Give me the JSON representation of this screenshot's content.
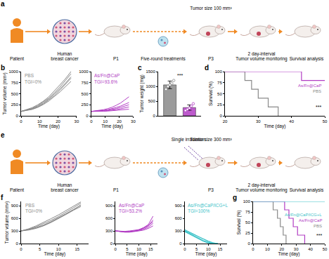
{
  "schematics": [
    {
      "label": "a",
      "steps": [
        [
          "Patient"
        ],
        [
          "Human",
          "breast cancer"
        ],
        [
          "P1"
        ],
        [
          "P3"
        ],
        [
          "2 day-interval",
          "Tumor volume monitoring"
        ],
        [
          "Survival analysis"
        ]
      ],
      "tumor_size": "Tumor size 100 mm³",
      "treatment": "Five-round treatments"
    },
    {
      "label": "e",
      "steps": [
        [
          "Patient"
        ],
        [
          "Human",
          "breast cancer"
        ],
        [
          "P1"
        ],
        [
          "P3"
        ],
        [
          "2 day-interval",
          "Tumor volume monitoring"
        ],
        [
          "Survival analysis"
        ]
      ],
      "tumor_size": "Tumor size 300 mm³",
      "treatment": "Single irradiation"
    }
  ],
  "chart_data": [
    {
      "label": "b",
      "type": "line",
      "x_label": "Time (day)",
      "y_label": "Tumor volume (mm³)",
      "xlim": [
        0,
        30
      ],
      "xticks": [
        0,
        10,
        20,
        30
      ],
      "ylim": [
        0,
        1000
      ],
      "yticks": [
        0,
        250,
        500,
        750,
        1000
      ],
      "panels": [
        {
          "name": "PBS",
          "color": "#8a8a8a",
          "annotation": "TGI=0%",
          "series": [
            {
              "x": [
                0,
                3,
                6,
                9,
                12,
                15,
                18,
                21,
                24,
                27
              ],
              "values": [
                100,
                130,
                170,
                230,
                310,
                400,
                520,
                650,
                800,
                950
              ]
            },
            {
              "x": [
                0,
                3,
                6,
                9,
                12,
                15,
                18,
                21,
                24,
                27
              ],
              "values": [
                100,
                125,
                160,
                215,
                290,
                380,
                490,
                610,
                740,
                880
              ]
            },
            {
              "x": [
                0,
                3,
                6,
                9,
                12,
                15,
                18,
                21,
                24,
                27
              ],
              "values": [
                100,
                120,
                150,
                200,
                270,
                360,
                460,
                580,
                720,
                850
              ]
            },
            {
              "x": [
                0,
                3,
                6,
                9,
                12,
                15,
                18,
                21,
                24,
                27
              ],
              "values": [
                100,
                140,
                185,
                250,
                330,
                430,
                560,
                700,
                840,
                1000
              ]
            },
            {
              "x": [
                0,
                3,
                6,
                9,
                12,
                15,
                18,
                21,
                24,
                27
              ],
              "values": [
                100,
                118,
                145,
                190,
                255,
                335,
                430,
                540,
                660,
                780
              ]
            }
          ]
        },
        {
          "name": "As/Fn@CaP",
          "color": "#b23ec4",
          "annotation": "TGI=93.6%",
          "series": [
            {
              "x": [
                0,
                3,
                6,
                9,
                12,
                15,
                18,
                21,
                24,
                27
              ],
              "values": [
                100,
                110,
                125,
                140,
                165,
                195,
                240,
                290,
                360,
                430
              ]
            },
            {
              "x": [
                0,
                3,
                6,
                9,
                12,
                15,
                18,
                21,
                24,
                27
              ],
              "values": [
                100,
                105,
                115,
                125,
                140,
                160,
                190,
                220,
                260,
                300
              ]
            },
            {
              "x": [
                0,
                3,
                6,
                9,
                12,
                15,
                18,
                21,
                24,
                27
              ],
              "values": [
                100,
                102,
                110,
                118,
                130,
                145,
                165,
                190,
                220,
                250
              ]
            },
            {
              "x": [
                0,
                3,
                6,
                9,
                12,
                15,
                18,
                21,
                24,
                27
              ],
              "values": [
                100,
                100,
                105,
                110,
                118,
                128,
                140,
                160,
                180,
                200
              ]
            },
            {
              "x": [
                0,
                3,
                6,
                9,
                12,
                15,
                18,
                21,
                24,
                27
              ],
              "values": [
                100,
                98,
                100,
                103,
                108,
                115,
                122,
                130,
                140,
                150
              ]
            }
          ]
        }
      ]
    },
    {
      "label": "c",
      "type": "bar",
      "y_label": "Tumor weight (mg)",
      "categories": [
        null,
        null
      ],
      "values": [
        1050,
        280
      ],
      "errors": [
        130,
        90
      ],
      "points": [
        [
          900,
          1000,
          1050,
          1100,
          1200
        ],
        [
          180,
          220,
          260,
          330,
          410
        ]
      ],
      "colors": [
        "#8a8a8a",
        "#b23ec4"
      ],
      "ylim": [
        0,
        1500
      ],
      "yticks": [
        0,
        500,
        1000,
        1500
      ],
      "tick_labels": "y",
      "annotation": "***"
    },
    {
      "label": "d",
      "type": "line",
      "line_style": "step",
      "x_label": "Time (day)",
      "y_label": "Survival (%)",
      "xlim": [
        20,
        50
      ],
      "xticks": [
        20,
        30,
        40,
        50
      ],
      "ylim": [
        0,
        100
      ],
      "yticks": [
        0,
        25,
        50,
        75,
        100
      ],
      "series": [
        {
          "name": "PBS",
          "color": "#8a8a8a",
          "x": [
            20,
            26,
            28,
            30,
            33,
            36
          ],
          "values": [
            100,
            80,
            60,
            40,
            20,
            0
          ]
        },
        {
          "name": "As/Fn@CaP",
          "color": "#b23ec4",
          "x": [
            20,
            43,
            50
          ],
          "values": [
            100,
            80,
            80
          ]
        }
      ],
      "annotation": "***"
    },
    {
      "label": "f",
      "type": "line",
      "x_label": "Time (day)",
      "y_label": "Tumor volume (mm³)",
      "xlim": [
        0,
        18
      ],
      "xticks": [
        0,
        5,
        10,
        15
      ],
      "ylim": [
        0,
        1000
      ],
      "yticks": [
        0,
        300,
        600,
        900
      ],
      "panels": [
        {
          "name": "PBS",
          "color": "#8a8a8a",
          "annotation": "TGI=0%",
          "series": [
            {
              "x": [
                0,
                2,
                4,
                6,
                8,
                10,
                12,
                14,
                16
              ],
              "values": [
                300,
                340,
                400,
                470,
                550,
                640,
                740,
                850,
                960
              ]
            },
            {
              "x": [
                0,
                2,
                4,
                6,
                8,
                10,
                12,
                14,
                16
              ],
              "values": [
                300,
                330,
                380,
                440,
                520,
                610,
                710,
                810,
                910
              ]
            },
            {
              "x": [
                0,
                2,
                4,
                6,
                8,
                10,
                12,
                14,
                16
              ],
              "values": [
                300,
                320,
                360,
                420,
                500,
                590,
                690,
                790,
                880
              ]
            },
            {
              "x": [
                0,
                2,
                4,
                6,
                8,
                10,
                12,
                14,
                16
              ],
              "values": [
                300,
                350,
                420,
                500,
                590,
                680,
                780,
                880,
                990
              ]
            },
            {
              "x": [
                0,
                2,
                4,
                6,
                8,
                10,
                12,
                14,
                16
              ],
              "values": [
                300,
                330,
                370,
                430,
                510,
                600,
                700,
                800,
                920
              ]
            }
          ]
        },
        {
          "name": "As/Fn@CaP",
          "color": "#b23ec4",
          "annotation": "TGI=53.2%",
          "series": [
            {
              "x": [
                0,
                2,
                4,
                6,
                8,
                10,
                12,
                14,
                16
              ],
              "values": [
                300,
                290,
                285,
                290,
                300,
                330,
                380,
                450,
                650
              ]
            },
            {
              "x": [
                0,
                2,
                4,
                6,
                8,
                10,
                12,
                14,
                16
              ],
              "values": [
                300,
                290,
                280,
                285,
                295,
                320,
                360,
                420,
                560
              ]
            },
            {
              "x": [
                0,
                2,
                4,
                6,
                8,
                10,
                12,
                14,
                16
              ],
              "values": [
                300,
                285,
                275,
                280,
                290,
                310,
                340,
                390,
                480
              ]
            },
            {
              "x": [
                0,
                2,
                4,
                6,
                8,
                10,
                12,
                14,
                16
              ],
              "values": [
                300,
                280,
                270,
                270,
                280,
                300,
                320,
                360,
                420
              ]
            },
            {
              "x": [
                0,
                2,
                4,
                6,
                8,
                10,
                12,
                14,
                16
              ],
              "values": [
                300,
                290,
                290,
                300,
                310,
                330,
                370,
                430,
                520
              ]
            }
          ]
        },
        {
          "name": "As/Fn@CaP/ICG+L",
          "color": "#3cc2c8",
          "annotation": "TGI=100%",
          "series": [
            {
              "x": [
                0,
                2,
                4,
                6,
                8,
                10,
                12,
                14
              ],
              "values": [
                330,
                280,
                220,
                160,
                100,
                50,
                10,
                0
              ]
            },
            {
              "x": [
                0,
                2,
                4,
                6,
                8,
                10,
                12,
                14
              ],
              "values": [
                300,
                240,
                180,
                120,
                70,
                30,
                0,
                0
              ]
            },
            {
              "x": [
                0,
                2,
                4,
                6,
                8,
                10,
                12,
                14
              ],
              "values": [
                280,
                220,
                160,
                100,
                50,
                10,
                0,
                0
              ]
            },
            {
              "x": [
                0,
                2,
                4,
                6,
                8,
                10,
                12,
                14
              ],
              "values": [
                310,
                260,
                200,
                150,
                100,
                60,
                20,
                0
              ]
            },
            {
              "x": [
                0,
                2,
                4,
                6,
                8,
                10,
                12,
                14
              ],
              "values": [
                290,
                230,
                170,
                110,
                60,
                20,
                0,
                0
              ]
            }
          ]
        }
      ]
    },
    {
      "label": "g",
      "type": "line",
      "line_style": "step",
      "x_label": "Time (day)",
      "y_label": "Survival (%)",
      "xlim": [
        0,
        50
      ],
      "xticks": [
        0,
        10,
        20,
        30,
        40,
        50
      ],
      "ylim": [
        0,
        100
      ],
      "yticks": [
        0,
        25,
        50,
        75,
        100
      ],
      "series": [
        {
          "name": "PBS",
          "color": "#8a8a8a",
          "x": [
            0,
            14,
            17,
            19,
            21,
            23
          ],
          "values": [
            100,
            80,
            60,
            40,
            20,
            0
          ]
        },
        {
          "name": "As/Fn@CaP",
          "color": "#b23ec4",
          "x": [
            0,
            22,
            25,
            28,
            31,
            36
          ],
          "values": [
            100,
            80,
            60,
            40,
            20,
            0
          ]
        },
        {
          "name": "As/Fn@CaP/ICG+L",
          "color": "#3cc2c8",
          "x": [
            0,
            50
          ],
          "values": [
            100,
            100
          ]
        }
      ],
      "annotation": "***"
    }
  ]
}
